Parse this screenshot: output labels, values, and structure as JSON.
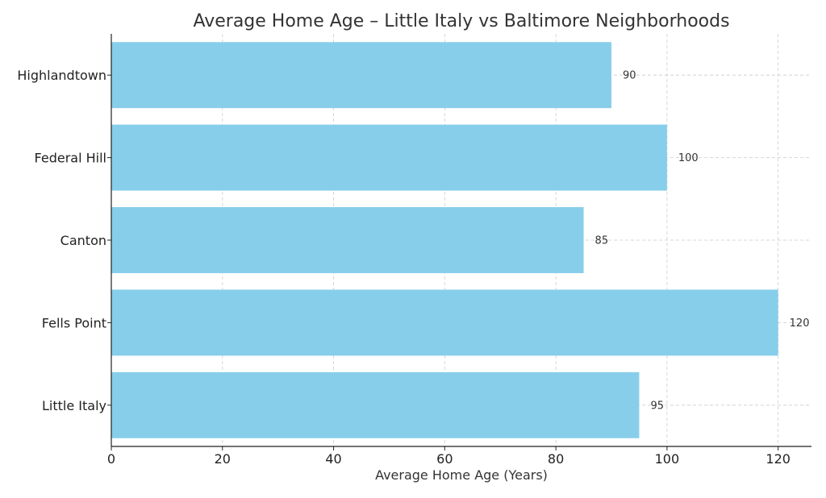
{
  "chart_data": {
    "type": "bar",
    "orientation": "horizontal",
    "title": "Average Home Age – Little Italy vs Baltimore Neighborhoods",
    "xlabel": "Average Home Age (Years)",
    "ylabel": "",
    "categories": [
      "Little Italy",
      "Fells Point",
      "Canton",
      "Federal Hill",
      "Highlandtown"
    ],
    "values": [
      95,
      120,
      85,
      100,
      90
    ],
    "value_labels": [
      "95",
      "120",
      "85",
      "100",
      "90"
    ],
    "xlim": [
      0,
      126
    ],
    "xticks": [
      0,
      20,
      40,
      60,
      80,
      100,
      120
    ],
    "xtick_labels": [
      "0",
      "20",
      "40",
      "60",
      "80",
      "100",
      "120"
    ],
    "grid": true,
    "colors": {
      "bar": "#87CEEB"
    }
  }
}
